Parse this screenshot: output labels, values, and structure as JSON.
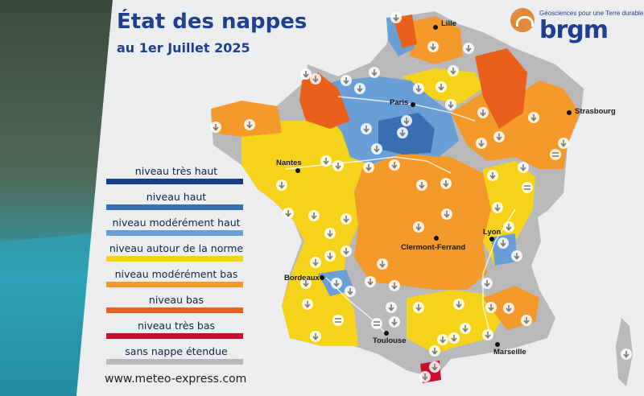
{
  "title": "État des nappes",
  "subtitle": "au 1er Juillet 2025",
  "footer": "www.meteo-express.com",
  "logo": {
    "brand": "brgm",
    "tagline": "Géosciences pour une Terre durable"
  },
  "legend": [
    {
      "label": "niveau très haut",
      "color": "#1a3f8a"
    },
    {
      "label": "niveau haut",
      "color": "#3b6fb4"
    },
    {
      "label": "niveau modérément haut",
      "color": "#6a9fd6"
    },
    {
      "label": "niveau autour de la norme",
      "color": "#f5d31a"
    },
    {
      "label": "niveau modérément bas",
      "color": "#f39a2a"
    },
    {
      "label": "niveau bas",
      "color": "#e8601c"
    },
    {
      "label": "niveau très bas",
      "color": "#c8102e"
    },
    {
      "label": "sans nappe étendue",
      "color": "#b9b9bb"
    }
  ],
  "cities": [
    "Lille",
    "Paris",
    "Strasbourg",
    "Nantes",
    "Clermont-Ferrand",
    "Lyon",
    "Bordeaux",
    "Toulouse",
    "Marseille"
  ],
  "colors": {
    "very_high": "#1a3f8a",
    "high": "#3b6fb4",
    "mod_high": "#6a9fd6",
    "normal": "#f5d31a",
    "mod_low": "#f39a2a",
    "low": "#e8601c",
    "very_low": "#c8102e",
    "none": "#b9b9bb"
  }
}
